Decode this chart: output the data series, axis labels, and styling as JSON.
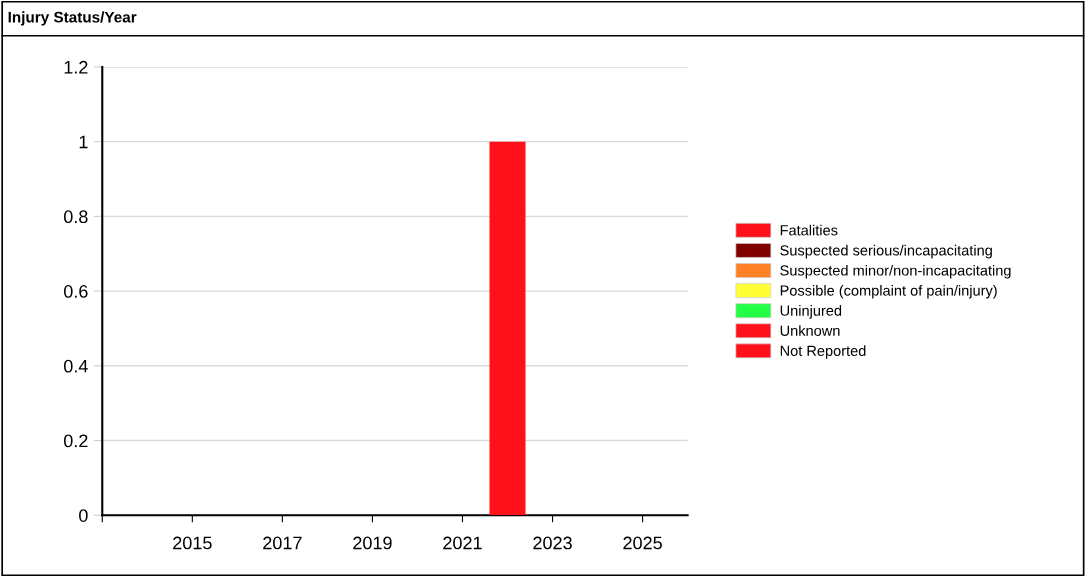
{
  "chart_data": {
    "type": "bar",
    "title": "Injury Status/Year",
    "x": [
      2022
    ],
    "series": [
      {
        "name": "Fatalities",
        "color": "#ff111b",
        "values": [
          1
        ]
      },
      {
        "name": "Suspected serious/incapacitating",
        "color": "#800000",
        "values": [
          null
        ]
      },
      {
        "name": "Suspected minor/non-incapacitating",
        "color": "#ff8025",
        "values": [
          null
        ]
      },
      {
        "name": "Possible (complaint of pain/injury)",
        "color": "#ffff33",
        "values": [
          null
        ]
      },
      {
        "name": "Uninjured",
        "color": "#22ff44",
        "values": [
          null
        ]
      },
      {
        "name": "Unknown",
        "color": "#ff111b",
        "values": [
          null
        ]
      },
      {
        "name": "Not Reported",
        "color": "#ff111b",
        "values": [
          null
        ]
      }
    ],
    "xlim": [
      2013,
      2026
    ],
    "xticks": [
      {
        "value": 2013,
        "label": null
      },
      2015,
      2017,
      2019,
      2021,
      2023,
      2025
    ],
    "ylim": [
      0,
      1.2
    ],
    "yticks": [
      0,
      0.2,
      0.4,
      0.6,
      0.8,
      1,
      1.2
    ],
    "grid": "y",
    "legend": "right"
  }
}
